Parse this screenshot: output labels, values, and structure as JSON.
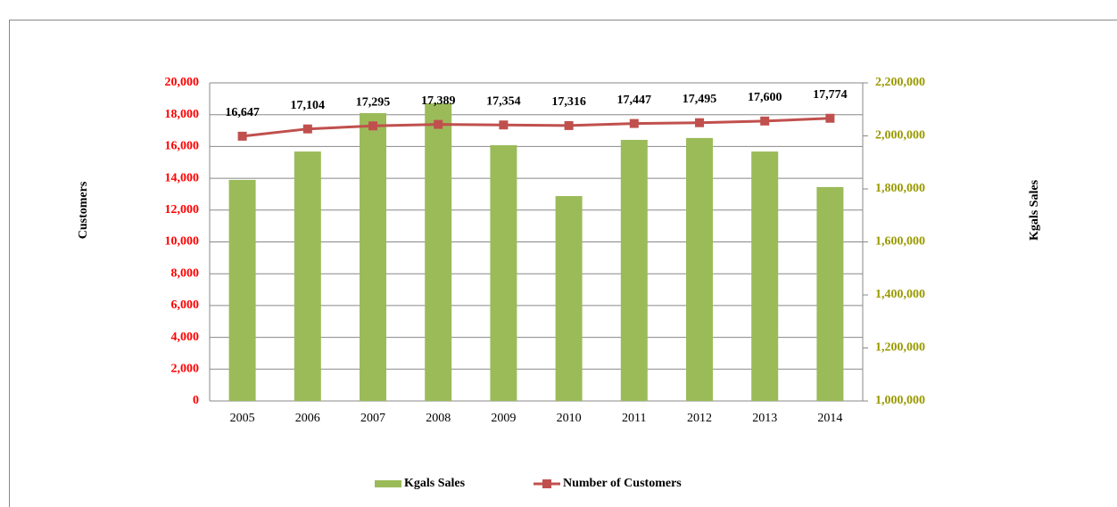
{
  "chart_data": {
    "type": "combo",
    "categories": [
      "2005",
      "2006",
      "2007",
      "2008",
      "2009",
      "2010",
      "2011",
      "2012",
      "2013",
      "2014"
    ],
    "series": [
      {
        "name": "Kgals Sales",
        "type": "bar",
        "axis": "y2",
        "color": "#9bbb59",
        "values": [
          1834000,
          1941000,
          2086000,
          2123000,
          1965000,
          1773000,
          1985000,
          1992000,
          1941000,
          1807000
        ]
      },
      {
        "name": "Number of Customers",
        "type": "line",
        "axis": "y",
        "color": "#c0504d",
        "values": [
          16647,
          17104,
          17295,
          17389,
          17354,
          17316,
          17447,
          17495,
          17600,
          17774
        ],
        "value_labels": [
          "16,647",
          "17,104",
          "17,295",
          "17,389",
          "17,354",
          "17,316",
          "17,447",
          "17,495",
          "17,600",
          "17,774"
        ]
      }
    ],
    "ylabel": "Customers",
    "y2label": "Kgals Sales",
    "ylim": [
      0,
      20000
    ],
    "yticks": [
      0,
      {
        "value": 2000,
        "label": "2,000"
      },
      {
        "value": 4000,
        "label": "4,000"
      },
      {
        "value": 6000,
        "label": "6,000"
      },
      {
        "value": 8000,
        "label": "8,000"
      },
      {
        "value": 10000,
        "label": "10,000"
      },
      {
        "value": 12000,
        "label": "12,000"
      },
      {
        "value": 14000,
        "label": "14,000"
      },
      {
        "value": 16000,
        "label": "16,000"
      },
      {
        "value": 18000,
        "label": "18,000"
      },
      {
        "value": 20000,
        "label": "20,000"
      }
    ],
    "y2lim": [
      1000000,
      2200000
    ],
    "y2ticks": [
      {
        "value": 1000000,
        "label": "1,000,000"
      },
      {
        "value": 1200000,
        "label": "1,200,000"
      },
      {
        "value": 1400000,
        "label": "1,400,000"
      },
      {
        "value": 1600000,
        "label": "1,600,000"
      },
      {
        "value": 1800000,
        "label": "1,800,000"
      },
      {
        "value": 2000000,
        "label": "2,000,000"
      },
      {
        "value": 2200000,
        "label": "2,200,000"
      }
    ],
    "ytick_color": "#ff0000",
    "y2tick_color": "#999900",
    "grid": true,
    "legend": "bottom"
  }
}
